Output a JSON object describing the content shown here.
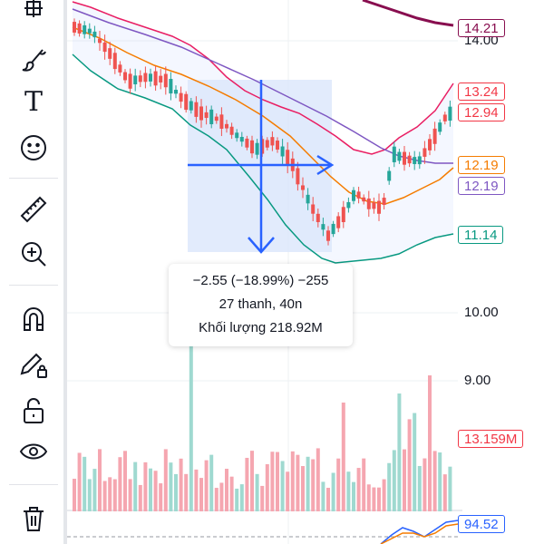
{
  "toolbar": {
    "tools": [
      {
        "name": "crosshair-tool",
        "icon": "crosshair-icon"
      },
      {
        "name": "brush-tool",
        "icon": "brush-icon"
      },
      {
        "name": "text-tool",
        "icon": "text-icon",
        "glyph": "T"
      },
      {
        "name": "emoji-tool",
        "icon": "smiley-icon"
      },
      {
        "name": "ruler-tool",
        "icon": "ruler-icon"
      },
      {
        "name": "zoom-tool",
        "icon": "zoom-in-icon"
      },
      {
        "name": "magnet-tool",
        "icon": "magnet-icon"
      },
      {
        "name": "lock-drawing-tool",
        "icon": "pencil-lock-icon"
      },
      {
        "name": "unlock-tool",
        "icon": "unlock-icon"
      },
      {
        "name": "hide-tool",
        "icon": "eye-icon"
      },
      {
        "name": "delete-tool",
        "icon": "trash-icon"
      }
    ]
  },
  "price_axis": {
    "labels": [
      "14.00",
      "10.00",
      "9.00"
    ]
  },
  "badges": [
    {
      "value": "14.21",
      "color": "#880e4f"
    },
    {
      "value": "13.24",
      "color": "#f23645"
    },
    {
      "value": "12.94",
      "color": "#f23645"
    },
    {
      "value": "12.19",
      "color": "#f57c00"
    },
    {
      "value": "12.19",
      "color": "#7e57c2"
    },
    {
      "value": "11.14",
      "color": "#089981"
    },
    {
      "value": "13.159M",
      "color": "#f23645"
    },
    {
      "value": "94.52",
      "color": "#2962ff"
    }
  ],
  "measure_tooltip": {
    "change": "−2.55 (−18.99%) −255",
    "bars": "27 thanh, 40n",
    "volume": "Khối lượng 218.92M"
  },
  "colors": {
    "up": "#26a69a",
    "down": "#ef5350",
    "measure_fill": "#dbe6fb",
    "measure_arrow": "#2962ff",
    "bollinger_upper": "#e91e63",
    "bollinger_lower": "#089981",
    "ma_orange": "#f57c00",
    "ma_purple": "#7e57c2"
  }
}
